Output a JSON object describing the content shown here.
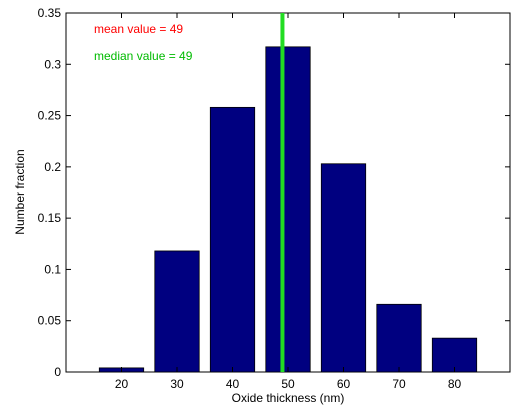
{
  "chart_data": {
    "type": "bar",
    "xlabel": "Oxide thickness (nm)",
    "ylabel": "Number fraction",
    "x_ticks": [
      20,
      30,
      40,
      50,
      60,
      70,
      80
    ],
    "x_range": [
      10,
      90
    ],
    "ylim": [
      0,
      0.35
    ],
    "y_ticks": [
      0,
      0.05,
      0.1,
      0.15,
      0.2,
      0.25,
      0.3,
      0.35
    ],
    "y_tick_labels": [
      "0",
      "0.05",
      "0.1",
      "0.15",
      "0.2",
      "0.25",
      "0.3",
      "0.35"
    ],
    "bar_width": 8,
    "bars": [
      {
        "x": 20,
        "value": 0.004
      },
      {
        "x": 30,
        "value": 0.118
      },
      {
        "x": 40,
        "value": 0.258
      },
      {
        "x": 50,
        "value": 0.317
      },
      {
        "x": 60,
        "value": 0.203
      },
      {
        "x": 70,
        "value": 0.066
      },
      {
        "x": 80,
        "value": 0.033
      }
    ],
    "bar_color": "#000080",
    "vline": {
      "x": 49,
      "color": "#22dd22"
    },
    "annotations": [
      {
        "text": "mean value = 49",
        "color": "#ff0000"
      },
      {
        "text": "median value = 49",
        "color": "#00bb00"
      }
    ],
    "grid": false
  }
}
